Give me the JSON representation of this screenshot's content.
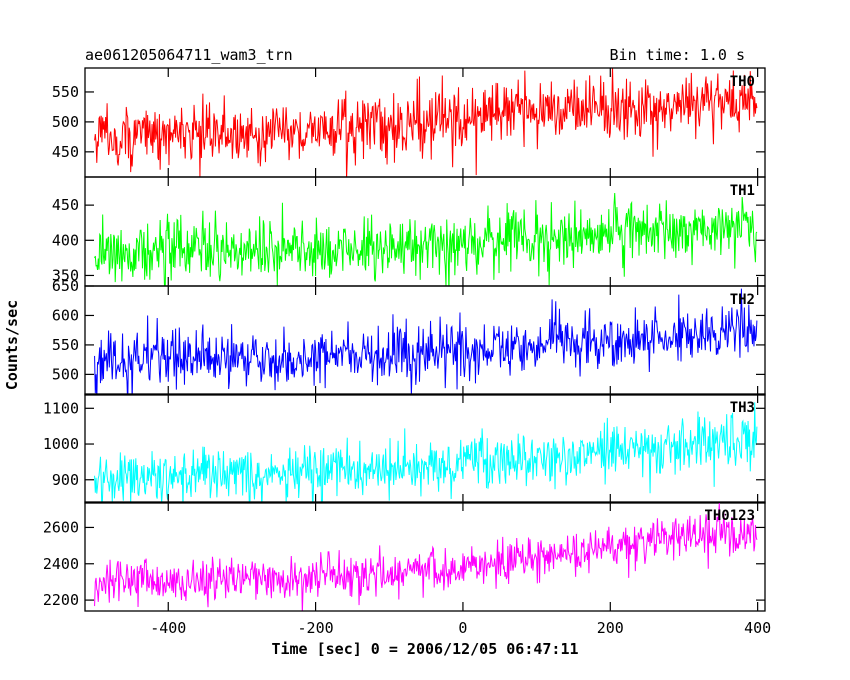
{
  "chart_data": {
    "type": "line",
    "title": "ae061205064711_wam3_trn",
    "subtitle": "Bin time: 1.0 s",
    "xlabel": "Time [sec] 0 = 2006/12/05 06:47:11",
    "ylabel": "Counts/sec",
    "xlim": [
      -513,
      410
    ],
    "xticks": [
      -400,
      -200,
      0,
      200,
      400
    ],
    "grid": false,
    "panels": [
      {
        "name": "TH0",
        "color": "#ff0000",
        "ylim": [
          408,
          590
        ],
        "yticks": [
          450,
          500,
          550
        ],
        "trend": [
          [
            -500,
            475
          ],
          [
            -200,
            485
          ],
          [
            0,
            505
          ],
          [
            100,
            520
          ],
          [
            400,
            535
          ]
        ],
        "noise_sd": 26
      },
      {
        "name": "TH1",
        "color": "#00ff00",
        "ylim": [
          335,
          490
        ],
        "yticks": [
          350,
          400,
          450
        ],
        "trend": [
          [
            -500,
            385
          ],
          [
            -200,
            385
          ],
          [
            0,
            395
          ],
          [
            200,
            410
          ],
          [
            400,
            420
          ]
        ],
        "noise_sd": 22
      },
      {
        "name": "TH2",
        "color": "#0000ff",
        "ylim": [
          465,
          650
        ],
        "yticks": [
          500,
          550,
          600,
          650
        ],
        "trend": [
          [
            -500,
            525
          ],
          [
            -200,
            528
          ],
          [
            0,
            540
          ],
          [
            200,
            560
          ],
          [
            400,
            578
          ]
        ],
        "noise_sd": 24
      },
      {
        "name": "TH3",
        "color": "#00ffff",
        "ylim": [
          835,
          1140
        ],
        "yticks": [
          900,
          1000,
          1100
        ],
        "trend": [
          [
            -500,
            910
          ],
          [
            -200,
            915
          ],
          [
            0,
            945
          ],
          [
            200,
            980
          ],
          [
            400,
            1015
          ]
        ],
        "noise_sd": 38
      },
      {
        "name": "TH0123",
        "color": "#ff00ff",
        "ylim": [
          2140,
          2740
        ],
        "yticks": [
          2200,
          2400,
          2600
        ],
        "trend": [
          [
            -500,
            2300
          ],
          [
            -200,
            2320
          ],
          [
            0,
            2390
          ],
          [
            200,
            2490
          ],
          [
            400,
            2565
          ]
        ],
        "noise_sd": 62
      }
    ]
  }
}
